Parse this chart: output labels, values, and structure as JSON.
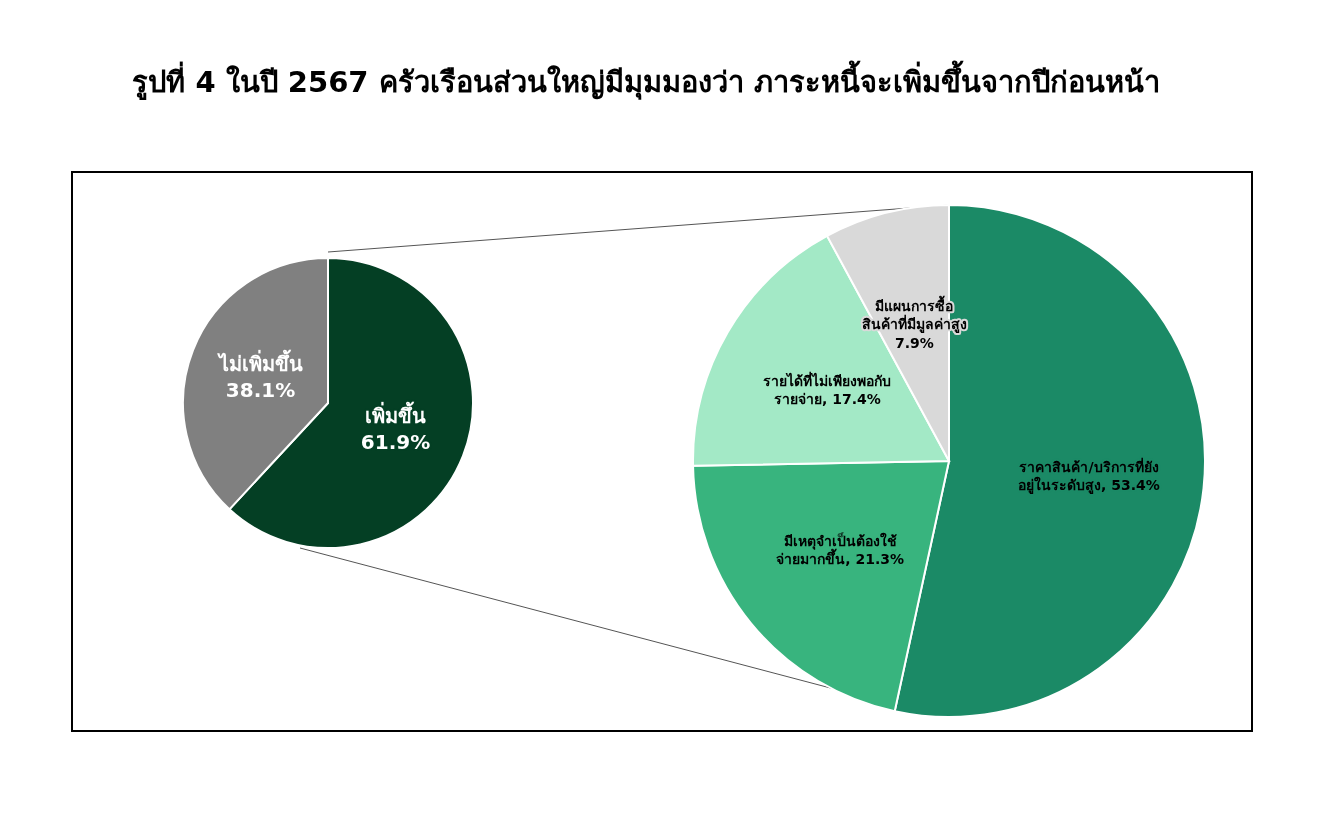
{
  "chart_data": [
    {
      "type": "pie",
      "title": "รูปที่ 4 ในปี 2567 ครัวเรือนส่วนใหญ่มีมุมมองว่า ภาระหนี้จะเพิ่มขึ้นจากปีก่อนหน้า",
      "categories": [
        "เพิ่มขึ้น",
        "ไม่เพิ่มขึ้น"
      ],
      "values": [
        61.9,
        38.1
      ],
      "colors": [
        "#043f24",
        "#808080"
      ],
      "value_labels": [
        "61.9%",
        "38.1%"
      ]
    },
    {
      "type": "pie",
      "categories": [
        "ราคาสินค้า/บริการที่ยัง\nอยู่ในระดับสูง",
        "มีเหตุจำเป็นต้องใช้\nจ่ายมากขึ้น",
        "รายได้ที่ไม่เพียงพอกับ\nรายจ่าย",
        "มีแผนการซื้อ\nสินค้าที่มีมูลค่าสูง"
      ],
      "values": [
        53.4,
        21.3,
        17.4,
        7.9
      ],
      "colors": [
        "#1b8a66",
        "#38b47e",
        "#a3e9c6",
        "#d9d9d9"
      ],
      "value_labels": [
        "53.4%",
        "21.3%",
        "17.4%",
        "7.9%"
      ]
    }
  ]
}
